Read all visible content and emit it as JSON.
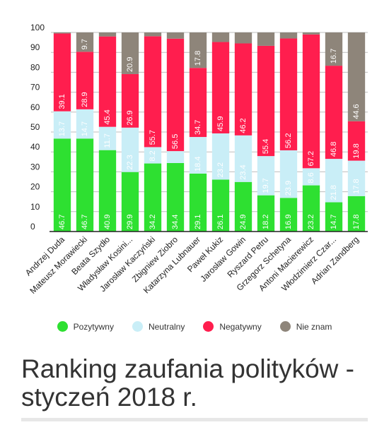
{
  "chart_data": {
    "type": "bar",
    "stacked": true,
    "title": "Ranking zaufania polityków - styczeń 2018 r.",
    "ylim": [
      0,
      100
    ],
    "yticks": [
      0,
      10,
      20,
      30,
      40,
      50,
      60,
      70,
      80,
      90,
      100
    ],
    "grid": true,
    "legend_position": "bottom",
    "categories": [
      "Andrzej Duda",
      "Mateusz Morawiecki",
      "Beata Szydło",
      "Władysław Kosini...",
      "Jarosław Kaczyński",
      "Zbigniew Ziobro",
      "Katarzyna Lubnauer",
      "Paweł Kukiz",
      "Jarosław Gowin",
      "Ryszard Petru",
      "Grzegorz Schetyna",
      "Antoni Macierewicz",
      "Włodzimierz Czar...",
      "Adrian Zandberg"
    ],
    "series": [
      {
        "name": "Pozytywny",
        "color": "#2ee031",
        "values": [
          46.7,
          46.7,
          40.9,
          29.9,
          34.2,
          34.4,
          29.1,
          26.1,
          24.9,
          18.2,
          16.9,
          23.2,
          14.7,
          17.8
        ]
      },
      {
        "name": "Neutralny",
        "color": "#c9eef7",
        "values": [
          13.7,
          14.7,
          11.7,
          22.3,
          8.2,
          6.0,
          18.4,
          23.2,
          23.4,
          19.7,
          23.9,
          8.6,
          21.8,
          17.8
        ]
      },
      {
        "name": "Negatywny",
        "color": "#ff1e4e",
        "values": [
          39.1,
          28.9,
          45.4,
          26.9,
          55.7,
          56.5,
          34.7,
          45.9,
          46.2,
          55.4,
          56.2,
          67.2,
          46.8,
          19.8
        ]
      },
      {
        "name": "Nie znam",
        "color": "#8e857a",
        "values": [
          0.5,
          9.7,
          2.0,
          20.9,
          1.9,
          3.1,
          17.8,
          4.8,
          5.5,
          6.7,
          3.0,
          1.0,
          16.7,
          44.6
        ]
      }
    ],
    "value_labels": [
      [
        "46.7",
        "46.7",
        "40.9",
        "29.9",
        "34.2",
        "34.4",
        "29.1",
        "26.1",
        "24.9",
        "18.2",
        "16.9",
        "23.2",
        "14.7",
        "17.8"
      ],
      [
        "13.7",
        "14.7",
        "11.7",
        "22.3",
        "8.2",
        "",
        "18.4",
        "23.2",
        "23.4",
        "19.7",
        "23.9",
        "8.6",
        "21.8",
        "17.8"
      ],
      [
        "39.1",
        "28.9",
        "45.4",
        "26.9",
        "55.7",
        "56.5",
        "34.7",
        "45.9",
        "46.2",
        "55.4",
        "56.2",
        "67.2",
        "46.8",
        "19.8"
      ],
      [
        "",
        "9.7",
        "",
        "20.9",
        "",
        "",
        "17.8",
        "",
        "",
        "",
        "",
        "",
        "16.7",
        "44.6"
      ]
    ]
  },
  "title_lines": [
    "Ranking zaufania polityków -",
    "styczeń 2018 r."
  ]
}
